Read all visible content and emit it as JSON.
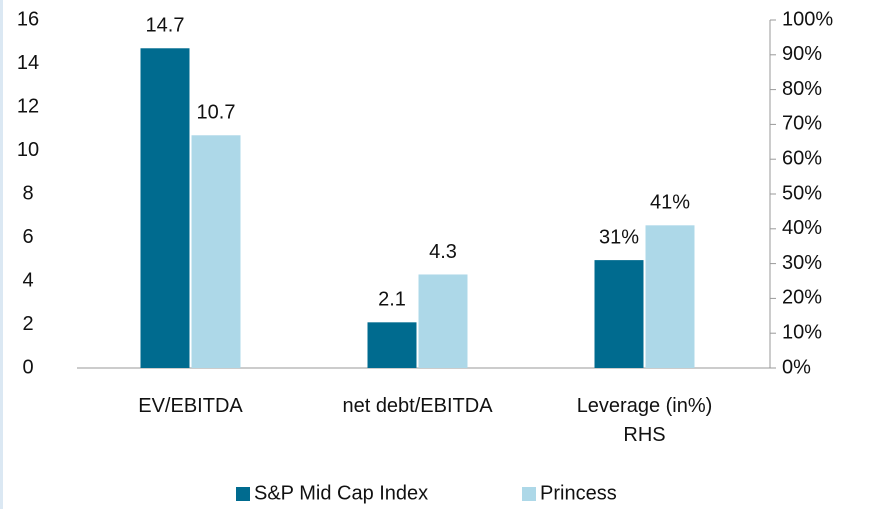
{
  "chart_data": {
    "type": "bar",
    "categories": [
      "EV/EBITDA",
      "net debt/EBITDA",
      "Leverage  (in%)\nRHS"
    ],
    "category_axis": [
      "y",
      "y",
      "y2"
    ],
    "series": [
      {
        "name": "S&P Mid Cap Index",
        "color": "#006b8f",
        "values": [
          14.7,
          2.1,
          31
        ],
        "value_labels": [
          "14.7",
          "2.1",
          "31%"
        ]
      },
      {
        "name": "Princess",
        "color": "#add8e8",
        "values": [
          10.7,
          4.3,
          41
        ],
        "value_labels": [
          "10.7",
          "4.3",
          "41%"
        ]
      }
    ],
    "ylim": [
      0,
      16
    ],
    "yticks": [
      0,
      2,
      4,
      6,
      8,
      10,
      12,
      14,
      16
    ],
    "y2lim": [
      0,
      100
    ],
    "y2ticks": [
      {
        "value": 0,
        "label": "0%"
      },
      {
        "value": 10,
        "label": "10%"
      },
      {
        "value": 20,
        "label": "20%"
      },
      {
        "value": 30,
        "label": "30%"
      },
      {
        "value": 40,
        "label": "40%"
      },
      {
        "value": 50,
        "label": "50%"
      },
      {
        "value": 60,
        "label": "60%"
      },
      {
        "value": 70,
        "label": "70%"
      },
      {
        "value": 80,
        "label": "80%"
      },
      {
        "value": 90,
        "label": "90%"
      },
      {
        "value": 100,
        "label": "100%"
      }
    ],
    "legend": "bottom"
  }
}
